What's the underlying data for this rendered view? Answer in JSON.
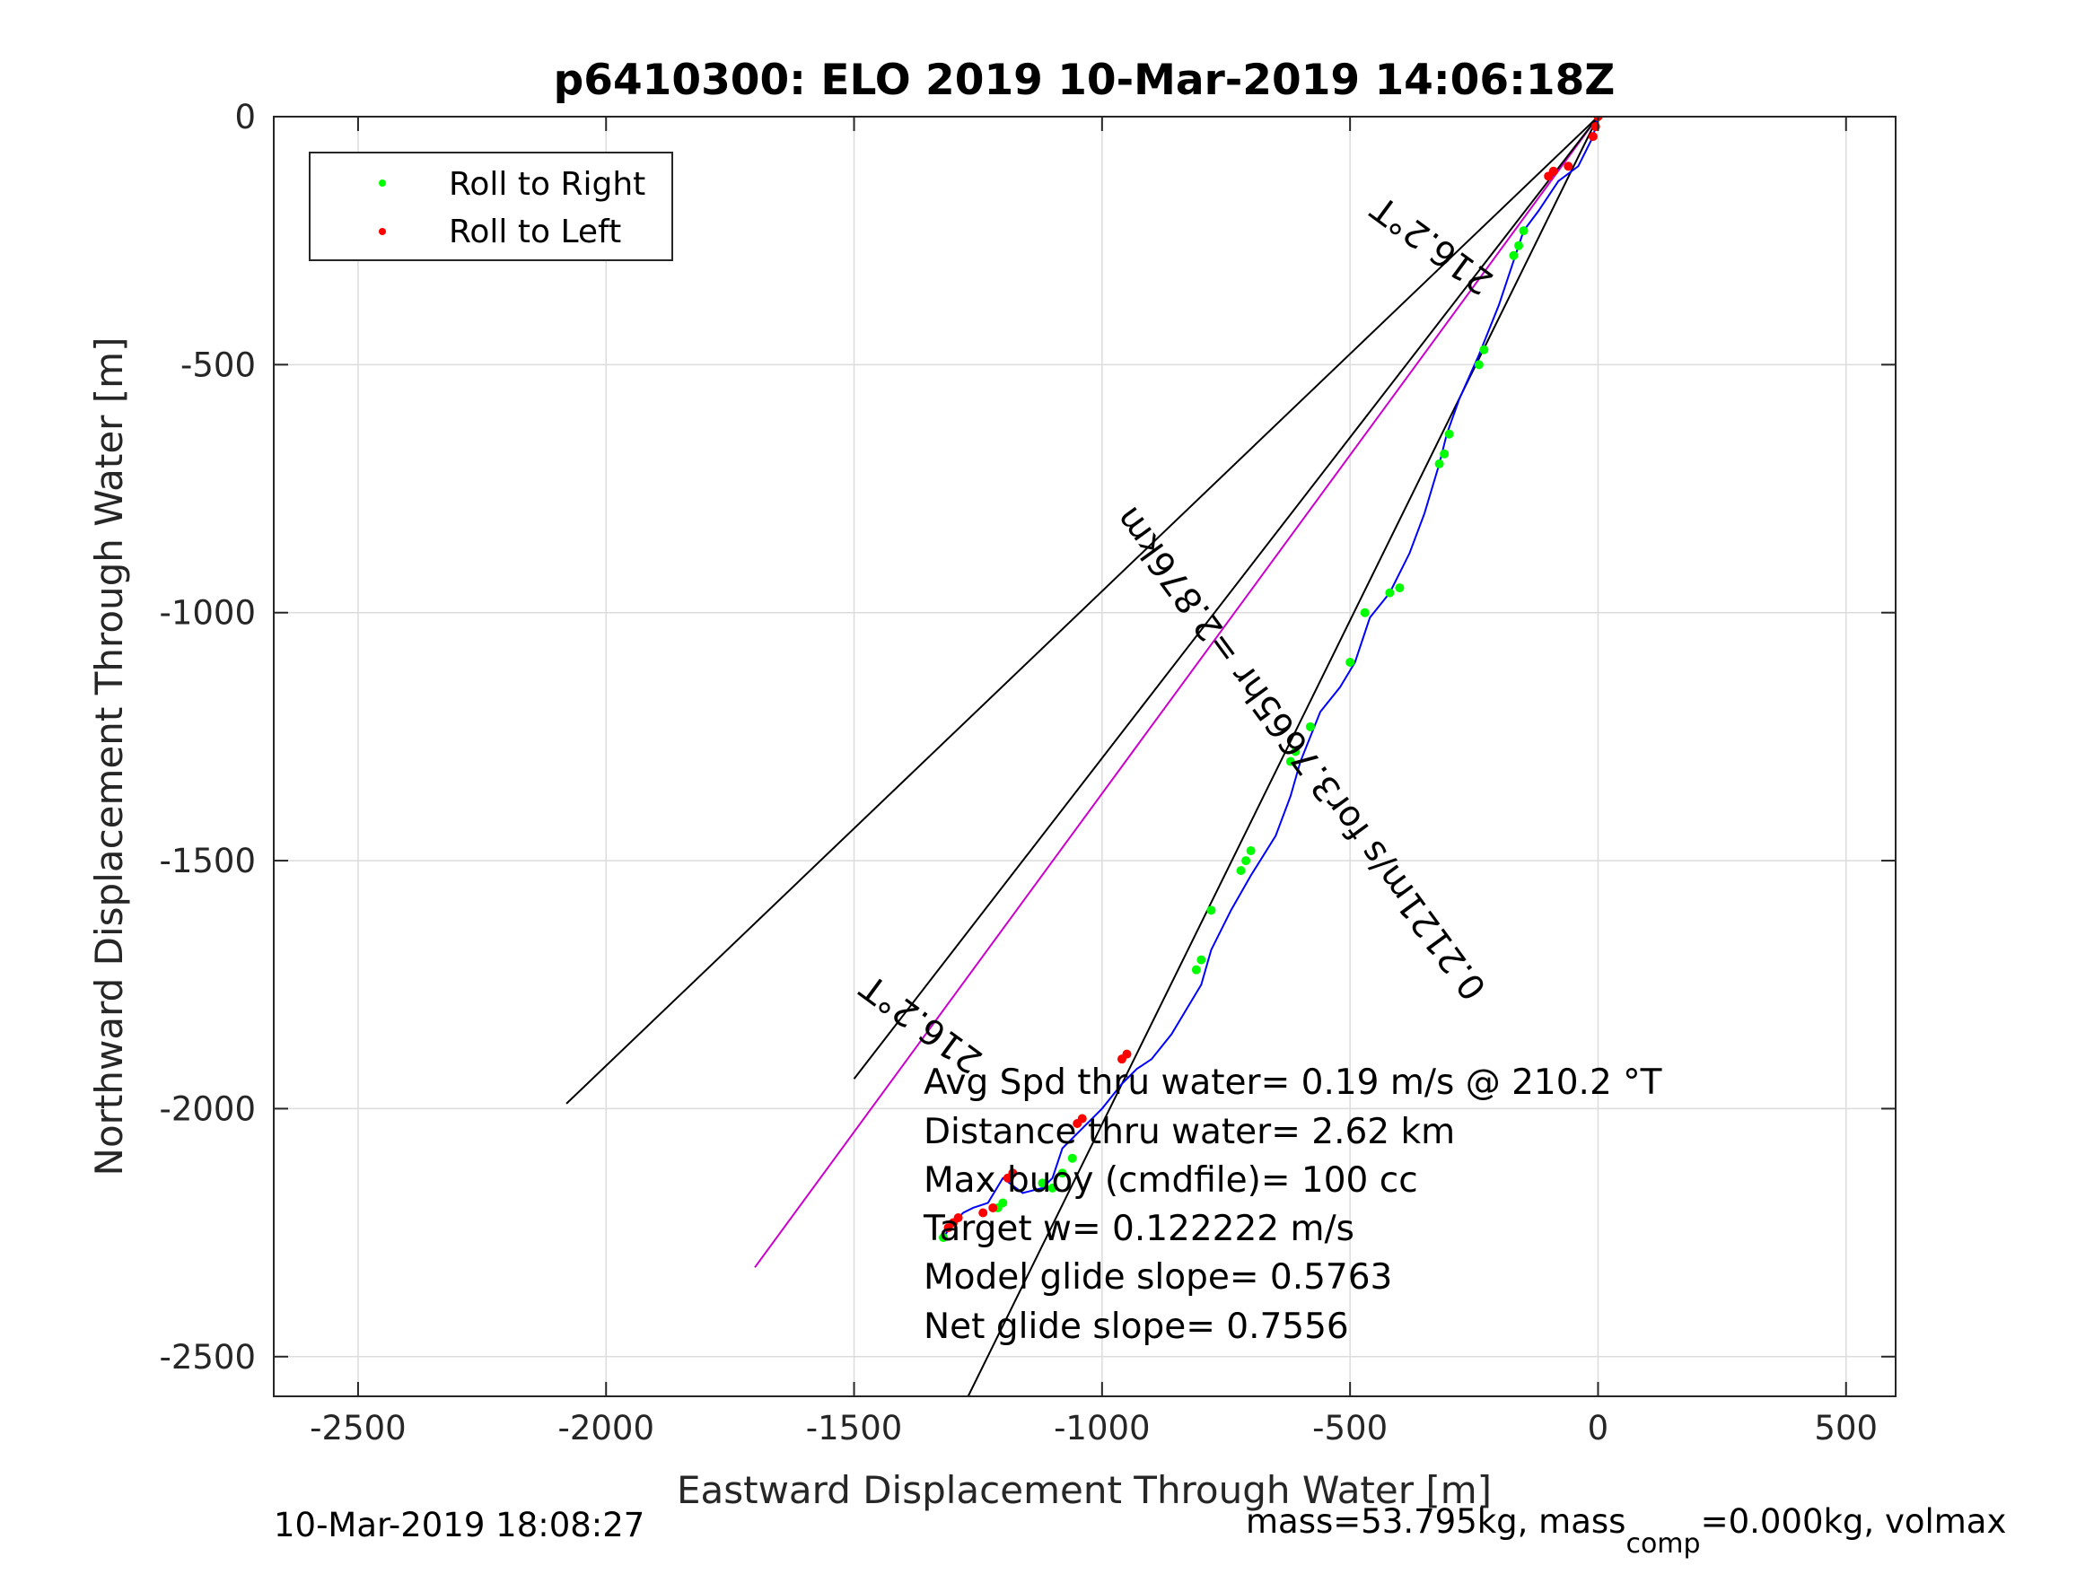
{
  "chart_data": {
    "type": "scatter",
    "title": "p6410300: ELO 2019 10-Mar-2019 14:06:18Z",
    "xlabel": "Eastward Displacement Through Water [m]",
    "ylabel": "Northward Displacement Through Water [m]",
    "xlim": [
      -2670,
      600
    ],
    "ylim": [
      -2580,
      0
    ],
    "x_ticks": [
      -2500,
      -2000,
      -1500,
      -1000,
      -500,
      0,
      500
    ],
    "y_ticks": [
      0,
      -500,
      -1000,
      -1500,
      -2000,
      -2500
    ],
    "x_tick_labels": [
      "-2500",
      "-2000",
      "-1500",
      "-1000",
      "-500",
      "0",
      "500"
    ],
    "y_tick_labels": [
      "0",
      "-500",
      "-1000",
      "-1500",
      "-2000",
      "-2500"
    ],
    "grid": true,
    "legend_position": "top-left",
    "legend": [
      {
        "name": "Roll to Right",
        "color": "#00ff00"
      },
      {
        "name": "Roll to Left",
        "color": "#ff0000"
      }
    ],
    "track_color": "#0000ff",
    "lines": [
      {
        "name": "heading line upper",
        "color": "#000000",
        "x": [
          0,
          -2080
        ],
        "y": [
          0,
          -1990
        ]
      },
      {
        "name": "current line",
        "color": "#cc00cc",
        "x": [
          0,
          -1700
        ],
        "y": [
          0,
          -2320
        ]
      },
      {
        "name": "heading line lower",
        "color": "#000000",
        "x": [
          0,
          -1500
        ],
        "y": [
          0,
          -1940
        ]
      },
      {
        "name": "net track line",
        "color": "#000000",
        "x": [
          0,
          -1270
        ],
        "y": [
          0,
          -2580
        ]
      }
    ],
    "track": {
      "x": [
        0,
        -10,
        -40,
        -80,
        -120,
        -150,
        -170,
        -200,
        -240,
        -280,
        -305,
        -320,
        -350,
        -380,
        -420,
        -460,
        -490,
        -520,
        -560,
        -600,
        -620,
        -650,
        -700,
        -740,
        -780,
        -800,
        -830,
        -860,
        -900,
        -930,
        -960,
        -1000,
        -1050,
        -1080,
        -1100,
        -1120,
        -1160,
        -1200,
        -1230,
        -1260,
        -1280,
        -1300,
        -1320
      ],
      "y": [
        0,
        -40,
        -100,
        -130,
        -190,
        -230,
        -290,
        -380,
        -480,
        -570,
        -640,
        -700,
        -800,
        -880,
        -960,
        -1010,
        -1100,
        -1150,
        -1200,
        -1300,
        -1370,
        -1450,
        -1530,
        -1600,
        -1680,
        -1750,
        -1800,
        -1850,
        -1900,
        -1920,
        -1950,
        -2000,
        -2050,
        -2080,
        -2140,
        -2160,
        -2170,
        -2140,
        -2190,
        -2200,
        -2210,
        -2230,
        -2260
      ]
    },
    "roll_right": {
      "x": [
        -150,
        -160,
        -170,
        -230,
        -240,
        -300,
        -310,
        -320,
        -400,
        -420,
        -470,
        -500,
        -580,
        -610,
        -620,
        -700,
        -710,
        -720,
        -780,
        -800,
        -810,
        -1060,
        -1080,
        -1100,
        -1120,
        -1200,
        -1210,
        -1320
      ],
      "y": [
        -230,
        -260,
        -280,
        -470,
        -500,
        -640,
        -680,
        -700,
        -950,
        -960,
        -1000,
        -1100,
        -1230,
        -1280,
        -1300,
        -1480,
        -1500,
        -1520,
        -1600,
        -1700,
        -1720,
        -2100,
        -2130,
        -2160,
        -2150,
        -2190,
        -2200,
        -2260
      ]
    },
    "roll_left": {
      "x": [
        0,
        -5,
        -10,
        -60,
        -90,
        -100,
        -950,
        -960,
        -1040,
        -1050,
        -1180,
        -1190,
        -1220,
        -1240,
        -1290,
        -1300,
        -1310
      ],
      "y": [
        0,
        -20,
        -40,
        -100,
        -110,
        -120,
        -1890,
        -1900,
        -2020,
        -2030,
        -2130,
        -2140,
        -2200,
        -2210,
        -2220,
        -2230,
        -2240
      ]
    },
    "line_labels": [
      {
        "text": "216.2°T",
        "x": -320,
        "y": -240,
        "rotation": 216.2
      },
      {
        "text": "0.2121m/s for3.7665hr =2.876km",
        "x": -580,
        "y": -1270,
        "rotation": 233.8
      },
      {
        "text": "216.2°T",
        "x": -1350,
        "y": -1810,
        "rotation": 216.2
      }
    ],
    "stats": [
      "Avg Spd thru water=  0.19 m/s @ 210.2 °T",
      "Distance thru water=  2.62 km",
      "Max buoy (cmdfile)= 100 cc",
      "Target w= 0.122222 m/s",
      "Model glide slope= 0.5763",
      "Net glide slope= 0.7556"
    ]
  },
  "footer": {
    "timestamp": "10-Mar-2019 18:08:27",
    "mass_prefix": "mass=53.795kg, mass",
    "mass_sub": "comp",
    "mass_suffix": "=0.000kg, volmax"
  }
}
